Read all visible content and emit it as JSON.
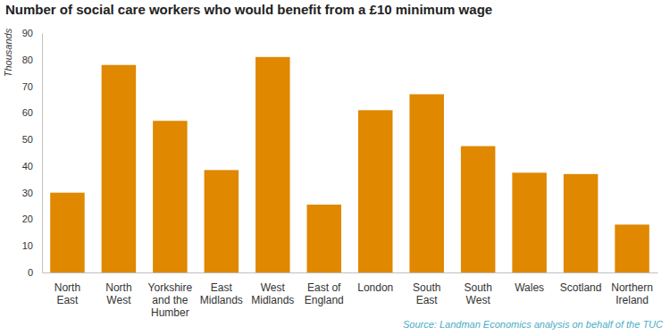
{
  "chart_data": {
    "type": "bar",
    "title": "Number of social care workers who would benefit from a £10 minimum wage",
    "y_label": "Thousands",
    "annotations": [
      "Source: Landman Economics analysis on behalf of the TUC"
    ],
    "categories": [
      "North East",
      "North West",
      "Yorkshire and the Humber",
      "East Midlands",
      "West Midlands",
      "East of England",
      "London",
      "South East",
      "South West",
      "Wales",
      "Scotland",
      "Northern Ireland"
    ],
    "values": [
      30,
      78,
      57,
      38.5,
      81,
      25.5,
      61,
      67,
      47.5,
      37.5,
      37,
      18
    ],
    "color": "#df8800",
    "ylim": [
      0,
      90
    ],
    "yticks": [
      0,
      10,
      20,
      30,
      40,
      50,
      60,
      70,
      80,
      90
    ],
    "grid": false
  }
}
